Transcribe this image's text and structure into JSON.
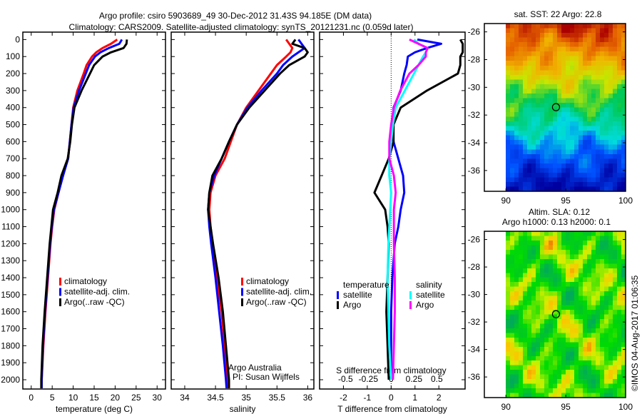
{
  "title": {
    "line1": "Argo profile: csiro 5903689_49 30-Dec-2012 31.43S 94.185E (DM data)",
    "line2": "Climatology: CARS2009. Satellite-adjusted climatology: synTS_20121231.nc (0.059d later)"
  },
  "credit": {
    "line1": "Argo Australia",
    "line2": "PI: Susan Wijffels"
  },
  "watermark": "©IMOS 04-Aug-2017 01:06:35",
  "colors": {
    "climatology": "#ff0000",
    "satellite": "#0000ff",
    "argo": "#000000",
    "sal_satellite": "#00ffff",
    "sal_argo": "#ff00ff"
  },
  "chart_data": [
    {
      "type": "line",
      "id": "temperature",
      "xlabel": "temperature (deg C)",
      "xlim": [
        -2,
        32
      ],
      "xticks": [
        "0",
        "5",
        "10",
        "15",
        "20",
        "25",
        "30"
      ],
      "ylim": [
        2060,
        0
      ],
      "yticks": [
        "0",
        "100",
        "200",
        "300",
        "400",
        "500",
        "600",
        "700",
        "800",
        "900",
        "1000",
        "1100",
        "1200",
        "1300",
        "1400",
        "1500",
        "1600",
        "1700",
        "1800",
        "1900",
        "2000"
      ],
      "depth": [
        0,
        25,
        50,
        75,
        100,
        150,
        200,
        300,
        400,
        500,
        600,
        700,
        800,
        900,
        1000,
        1100,
        1200,
        1400,
        1600,
        1800,
        2000,
        2050
      ],
      "legend": [
        "climatology",
        "satellite-adj. clim.",
        "Argo(..raw -QC)"
      ],
      "series": [
        {
          "name": "climatology",
          "values": [
            20.5,
            19,
            17,
            15.5,
            14.5,
            13.2,
            12.5,
            11,
            10,
            9.6,
            9.2,
            8.8,
            7.5,
            6.5,
            5.5,
            5,
            4.6,
            4,
            3.4,
            2.9,
            2.5,
            2.4
          ]
        },
        {
          "name": "satellite-adj. clim.",
          "values": [
            21.6,
            21,
            18.5,
            16.5,
            15.2,
            13.8,
            13,
            11.4,
            10.1,
            9.6,
            9.2,
            8.8,
            7.6,
            6.5,
            5.4,
            4.9,
            4.5,
            3.9,
            3.3,
            2.8,
            2.5,
            2.5
          ]
        },
        {
          "name": "Argo(..raw -QC)",
          "values": [
            22.8,
            22.7,
            22,
            19,
            17,
            15,
            14,
            12,
            10.3,
            9.7,
            9.3,
            8.7,
            7.2,
            6.3,
            5.2,
            4.8,
            4.4,
            3.8,
            3.2,
            2.7,
            2.4,
            2.4
          ]
        }
      ]
    },
    {
      "type": "line",
      "id": "salinity",
      "xlabel": "salinity",
      "xlim": [
        33.78,
        36.1
      ],
      "xticks": [
        "34",
        "34.5",
        "35",
        "35.5",
        "36"
      ],
      "ylim": [
        2060,
        0
      ],
      "depth": [
        0,
        25,
        50,
        75,
        100,
        150,
        200,
        300,
        400,
        500,
        600,
        700,
        800,
        900,
        1000,
        1100,
        1200,
        1400,
        1600,
        1800,
        2000,
        2050
      ],
      "legend": [
        "climatology",
        "satellite-adj. clim.",
        "Argo(..raw -QC)"
      ],
      "series": [
        {
          "name": "climatology",
          "values": [
            35.65,
            35.7,
            35.75,
            35.72,
            35.65,
            35.5,
            35.4,
            35.2,
            35.0,
            34.85,
            34.75,
            34.65,
            34.5,
            34.42,
            34.4,
            34.42,
            34.45,
            34.52,
            34.6,
            34.65,
            34.69,
            34.7
          ]
        },
        {
          "name": "satellite-adj. clim.",
          "values": [
            35.85,
            35.9,
            35.95,
            35.85,
            35.75,
            35.6,
            35.5,
            35.25,
            35.02,
            34.85,
            34.72,
            34.6,
            34.48,
            34.4,
            34.38,
            34.4,
            34.43,
            34.5,
            34.56,
            34.62,
            34.67,
            34.68
          ]
        },
        {
          "name": "Argo(..raw -QC)",
          "values": [
            35.8,
            35.75,
            35.95,
            36.0,
            35.95,
            35.7,
            35.55,
            35.3,
            35.05,
            34.85,
            34.72,
            34.6,
            34.45,
            34.4,
            34.38,
            34.42,
            34.46,
            34.55,
            34.62,
            34.67,
            34.72,
            34.72
          ]
        }
      ]
    },
    {
      "type": "line",
      "id": "difference",
      "xlabel": "T difference from climatology",
      "xlabel2": "S difference from climatology",
      "xlim": [
        -3,
        3.1
      ],
      "xticks": [
        "-2",
        "-1",
        "0",
        "1",
        "2"
      ],
      "xticks2": [
        "-0.5",
        "-0.25",
        "0",
        "0.25",
        "0.5"
      ],
      "ylim": [
        2060,
        0
      ],
      "depth": [
        0,
        25,
        50,
        75,
        100,
        150,
        200,
        300,
        400,
        500,
        600,
        700,
        800,
        900,
        1000,
        1100,
        1200,
        1400,
        1600,
        1800,
        2000
      ],
      "legend_temperature": {
        "title": "temperature",
        "items": [
          "satellite",
          "Argo"
        ]
      },
      "legend_salinity": {
        "title": "salinity",
        "items": [
          "satellite",
          "Argo"
        ]
      },
      "series": [
        {
          "name": "temperature satellite",
          "var": "T",
          "values": [
            1.1,
            2.1,
            1.5,
            1.0,
            0.7,
            0.65,
            0.55,
            0.4,
            0.1,
            0.05,
            0.1,
            0.3,
            0.5,
            0.55,
            0.4,
            0.3,
            0.15,
            0.05,
            0.0,
            0.0,
            0.0
          ]
        },
        {
          "name": "temperature Argo",
          "var": "T",
          "values": [
            2.9,
            3.0,
            3.0,
            3.0,
            2.9,
            2.9,
            2.8,
            1.5,
            0.4,
            0.1,
            0.1,
            -0.1,
            -0.4,
            -0.7,
            -0.25,
            -0.15,
            -0.1,
            -0.15,
            -0.2,
            -0.15,
            -0.1
          ]
        },
        {
          "name": "salinity satellite",
          "var": "S",
          "values": [
            0.25,
            0.3,
            0.4,
            0.38,
            0.35,
            0.3,
            0.25,
            0.15,
            0.05,
            0.02,
            0.0,
            -0.02,
            -0.02,
            0.0,
            -0.01,
            -0.02,
            -0.03,
            -0.04,
            -0.03,
            -0.02,
            0.0
          ]
        },
        {
          "name": "salinity Argo",
          "var": "S",
          "values": [
            0.2,
            0.3,
            0.4,
            0.38,
            0.38,
            0.3,
            0.2,
            0.1,
            0.03,
            0.0,
            -0.02,
            -0.02,
            0.03,
            0.05,
            0.03,
            0.03,
            0.03,
            0.04,
            0.04,
            0.03,
            0.02
          ]
        }
      ]
    },
    {
      "type": "heatmap",
      "id": "sst_map",
      "title": "sat. SST: 22 Argo: 22.8",
      "xlim": [
        88.2,
        100
      ],
      "ylim": [
        -37.5,
        -25.4
      ],
      "xticks": [
        "90",
        "95",
        "100"
      ],
      "yticks": [
        "-26",
        "-28",
        "-30",
        "-32",
        "-34",
        "-36"
      ],
      "marker": {
        "lon": 94.185,
        "lat": -31.43
      }
    },
    {
      "type": "heatmap",
      "id": "sla_map",
      "title": "Altim. SLA: 0.12",
      "subtitle": "Argo h1000: 0.13 h2000: 0.1",
      "xlim": [
        88.2,
        100
      ],
      "ylim": [
        -37.5,
        -25.4
      ],
      "xticks": [
        "90",
        "95",
        "100"
      ],
      "yticks": [
        "-26",
        "-28",
        "-30",
        "-32",
        "-34",
        "-36"
      ],
      "marker": {
        "lon": 94.185,
        "lat": -31.43
      }
    }
  ]
}
